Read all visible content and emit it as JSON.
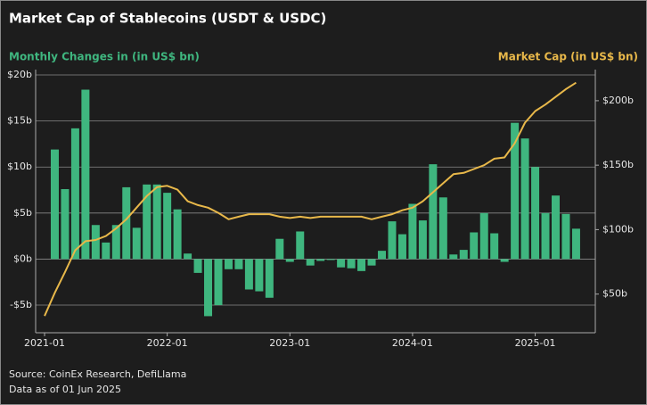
{
  "chart_data": {
    "type": "bar-line",
    "title": "Market Cap of Stablecoins (USDT & USDC)",
    "y_label": "Monthly Changes in (in US$ bn)",
    "y2_label": "Market Cap (in US$ bn)",
    "source": "Source: CoinEx Research, DefiLlama",
    "note": "Data as of 01 Jun 2025",
    "x": [
      "2021-01",
      "2021-02",
      "2021-03",
      "2021-04",
      "2021-05",
      "2021-06",
      "2021-07",
      "2021-08",
      "2021-09",
      "2021-10",
      "2021-11",
      "2021-12",
      "2022-01",
      "2022-02",
      "2022-03",
      "2022-04",
      "2022-05",
      "2022-06",
      "2022-07",
      "2022-08",
      "2022-09",
      "2022-10",
      "2022-11",
      "2022-12",
      "2023-01",
      "2023-02",
      "2023-03",
      "2023-04",
      "2023-05",
      "2023-06",
      "2023-07",
      "2023-08",
      "2023-09",
      "2023-10",
      "2023-11",
      "2023-12",
      "2024-01",
      "2024-02",
      "2024-03",
      "2024-04",
      "2024-05",
      "2024-06",
      "2024-07",
      "2024-08",
      "2024-09",
      "2024-10",
      "2024-11",
      "2024-12",
      "2025-01",
      "2025-02",
      "2025-03",
      "2025-04",
      "2025-05"
    ],
    "xticks": [
      "2021-01",
      "2022-01",
      "2023-01",
      "2024-01",
      "2025-01"
    ],
    "series": [
      {
        "name": "Monthly Changes",
        "type": "bar",
        "axis": "y",
        "color": "#3fb67f",
        "values": [
          null,
          11.9,
          7.6,
          14.2,
          18.4,
          3.7,
          1.8,
          3.7,
          7.8,
          3.4,
          8.1,
          8.1,
          7.2,
          5.4,
          0.6,
          -1.5,
          -6.2,
          -5.0,
          -1.1,
          -1.1,
          -3.3,
          -3.5,
          -4.2,
          2.2,
          -0.3,
          3.0,
          -0.7,
          -0.2,
          -0.1,
          -0.9,
          -1.0,
          -1.3,
          -0.7,
          0.9,
          4.1,
          2.7,
          6.0,
          4.2,
          10.3,
          6.7,
          0.5,
          1.0,
          2.9,
          5.0,
          2.8,
          -0.3,
          14.8,
          13.1,
          10.0,
          5.0,
          6.9,
          4.9,
          3.3
        ]
      },
      {
        "name": "Market Cap",
        "type": "line",
        "axis": "y2",
        "color": "#e8b84a",
        "values": [
          33,
          51,
          67,
          84,
          91,
          92,
          95,
          101,
          108,
          117,
          126,
          133,
          134,
          131,
          122,
          119,
          117,
          113,
          108,
          110,
          112,
          112,
          112,
          110,
          109,
          110,
          109,
          110,
          110,
          110,
          110,
          110,
          108,
          110,
          112,
          115,
          117,
          122,
          129,
          136,
          143,
          144,
          147,
          150,
          155,
          156,
          167,
          183,
          192,
          197,
          203,
          209,
          214
        ]
      }
    ],
    "ylim": [
      -8,
      20
    ],
    "yticks": [
      {
        "value": -5,
        "label": "-$5b"
      },
      {
        "value": 0,
        "label": "$0b"
      },
      {
        "value": 5,
        "label": "$5b"
      },
      {
        "value": 10,
        "label": "$10b"
      },
      {
        "value": 15,
        "label": "$15b"
      },
      {
        "value": 20,
        "label": "$20b"
      }
    ],
    "y2lim": [
      20,
      220
    ],
    "y2ticks": [
      {
        "value": 50,
        "label": "$50b"
      },
      {
        "value": 100,
        "label": "$100b"
      },
      {
        "value": 150,
        "label": "$150b"
      },
      {
        "value": 200,
        "label": "$200b"
      }
    ],
    "grid": true
  }
}
